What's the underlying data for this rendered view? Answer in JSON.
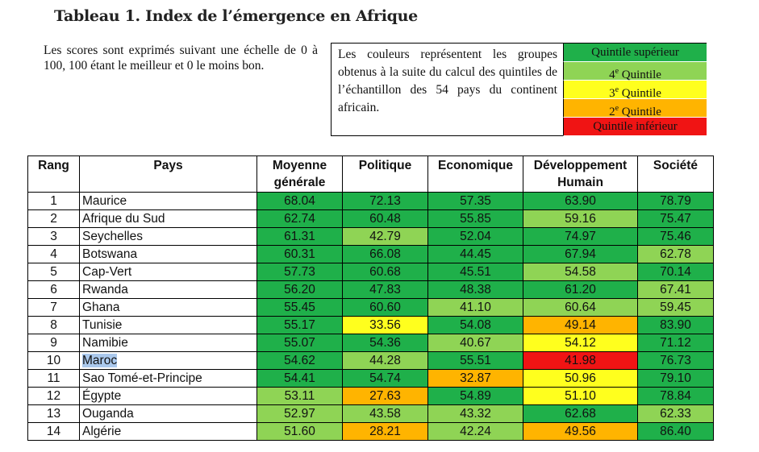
{
  "title": "Tableau 1. Index de l’émergence en Afrique",
  "intro": "Les scores sont exprimés suivant une échelle de 0 à 100, 100 étant le meilleur et 0 le moins bon.",
  "legend": {
    "text": "Les couleurs représentent les groupes obtenus à la suite du calcul des quintiles de l’échantillon des 54 pays du continent africain.",
    "items": [
      {
        "label": "Quintile supérieur",
        "sup": "",
        "rest": "",
        "color": "#1fb04a"
      },
      {
        "label": "4",
        "sup": "e",
        "rest": " Quintile",
        "color": "#8fd455"
      },
      {
        "label": "3",
        "sup": "e",
        "rest": " Quintile",
        "color": "#ffff1e"
      },
      {
        "label": "2",
        "sup": "e",
        "rest": " Quintile",
        "color": "#ffb400"
      },
      {
        "label": "Quintile inférieur",
        "sup": "",
        "rest": "",
        "color": "#f01414"
      }
    ]
  },
  "colors": {
    "q5": "#1fb04a",
    "q4": "#8fd455",
    "q3": "#ffff1e",
    "q2": "#ffb400",
    "q1": "#f01414"
  },
  "table": {
    "headers": [
      "Rang",
      "Pays",
      "Moyenne générale",
      "Politique",
      "Economique",
      "Développement Humain",
      "Société"
    ],
    "rows": [
      {
        "rang": "1",
        "pays": "Maurice",
        "vals": [
          "68.04",
          "72.13",
          "57.35",
          "63.90",
          "78.79"
        ],
        "q": [
          5,
          5,
          5,
          5,
          5
        ]
      },
      {
        "rang": "2",
        "pays": "Afrique du Sud",
        "vals": [
          "62.74",
          "60.48",
          "55.85",
          "59.16",
          "75.47"
        ],
        "q": [
          5,
          5,
          5,
          4,
          5
        ]
      },
      {
        "rang": "3",
        "pays": "Seychelles",
        "vals": [
          "61.31",
          "42.79",
          "52.04",
          "74.97",
          "75.46"
        ],
        "q": [
          5,
          4,
          5,
          5,
          5
        ]
      },
      {
        "rang": "4",
        "pays": "Botswana",
        "vals": [
          "60.31",
          "66.08",
          "44.45",
          "67.94",
          "62.78"
        ],
        "q": [
          5,
          5,
          5,
          5,
          4
        ]
      },
      {
        "rang": "5",
        "pays": "Cap-Vert",
        "vals": [
          "57.73",
          "60.68",
          "45.51",
          "54.58",
          "70.14"
        ],
        "q": [
          5,
          5,
          5,
          4,
          5
        ]
      },
      {
        "rang": "6",
        "pays": "Rwanda",
        "vals": [
          "56.20",
          "47.83",
          "48.38",
          "61.20",
          "67.41"
        ],
        "q": [
          5,
          5,
          5,
          5,
          4
        ]
      },
      {
        "rang": "7",
        "pays": "Ghana",
        "vals": [
          "55.45",
          "60.60",
          "41.10",
          "60.64",
          "59.45"
        ],
        "q": [
          5,
          5,
          4,
          4,
          4
        ]
      },
      {
        "rang": "8",
        "pays": "Tunisie",
        "vals": [
          "55.17",
          "33.56",
          "54.08",
          "49.14",
          "83.90"
        ],
        "q": [
          5,
          3,
          5,
          2,
          5
        ]
      },
      {
        "rang": "9",
        "pays": "Namibie",
        "vals": [
          "55.07",
          "54.36",
          "40.67",
          "54.12",
          "71.12"
        ],
        "q": [
          5,
          5,
          4,
          3,
          5
        ]
      },
      {
        "rang": "10",
        "pays": "Maroc",
        "vals": [
          "54.62",
          "44.28",
          "55.51",
          "41.98",
          "76.73"
        ],
        "q": [
          5,
          4,
          5,
          1,
          5
        ],
        "selected": true
      },
      {
        "rang": "11",
        "pays": "Sao Tomé-et-Principe",
        "vals": [
          "54.41",
          "54.74",
          "32.87",
          "50.96",
          "79.10"
        ],
        "q": [
          5,
          5,
          2,
          3,
          5
        ]
      },
      {
        "rang": "12",
        "pays": "Égypte",
        "vals": [
          "53.11",
          "27.63",
          "54.89",
          "51.10",
          "78.84"
        ],
        "q": [
          4,
          2,
          5,
          3,
          5
        ]
      },
      {
        "rang": "13",
        "pays": "Ouganda",
        "vals": [
          "52.97",
          "43.58",
          "43.32",
          "62.68",
          "62.33"
        ],
        "q": [
          4,
          4,
          4,
          5,
          4
        ]
      },
      {
        "rang": "14",
        "pays": "Algérie",
        "vals": [
          "51.60",
          "28.21",
          "42.24",
          "49.56",
          "86.40"
        ],
        "q": [
          4,
          2,
          4,
          2,
          5
        ]
      }
    ]
  }
}
